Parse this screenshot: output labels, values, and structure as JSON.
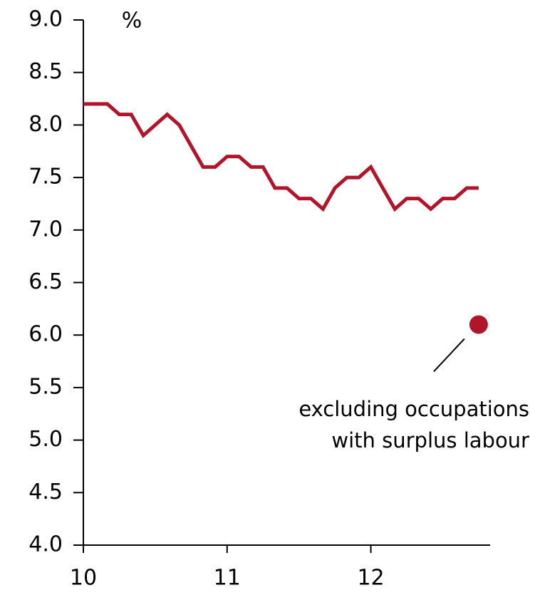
{
  "chart_data": {
    "type": "line",
    "y_label": "%",
    "x": [
      10,
      10.083,
      10.167,
      10.25,
      10.333,
      10.417,
      10.5,
      10.583,
      10.667,
      10.75,
      10.833,
      10.917,
      11,
      11.083,
      11.167,
      11.25,
      11.333,
      11.417,
      11.5,
      11.583,
      11.667,
      11.75,
      11.833,
      11.917,
      12,
      12.083,
      12.167,
      12.25,
      12.333,
      12.417,
      12.5,
      12.583,
      12.667,
      12.75
    ],
    "series": [
      {
        "color": "#b0152a",
        "values": [
          8.2,
          8.2,
          8.2,
          8.1,
          8.1,
          7.9,
          8.0,
          8.1,
          8.0,
          7.8,
          7.6,
          7.6,
          7.7,
          7.7,
          7.6,
          7.6,
          7.4,
          7.4,
          7.3,
          7.3,
          7.2,
          7.4,
          7.5,
          7.5,
          7.6,
          7.4,
          7.2,
          7.3,
          7.3,
          7.2,
          7.3,
          7.3,
          7.4,
          7.4
        ]
      }
    ],
    "annotation": {
      "lines": [
        "excluding occupations",
        "with surplus labour"
      ],
      "x": 12.75,
      "y": 6.1,
      "color": "#b0152a"
    },
    "xlim": [
      10,
      12.83
    ],
    "xticks": [
      10,
      11,
      12
    ],
    "ylim": [
      4.0,
      9.0
    ],
    "yticks": [
      {
        "value": 4,
        "label": "4.0"
      },
      {
        "value": 4.5,
        "label": "4.5"
      },
      {
        "value": 5,
        "label": "5.0"
      },
      {
        "value": 5.5,
        "label": "5.5"
      },
      {
        "value": 6,
        "label": "6.0"
      },
      {
        "value": 6.5,
        "label": "6.5"
      },
      {
        "value": 7,
        "label": "7.0"
      },
      {
        "value": 7.5,
        "label": "7.5"
      },
      {
        "value": 8,
        "label": "8.0"
      },
      {
        "value": 8.5,
        "label": "8.5"
      },
      {
        "value": 9,
        "label": "9.0"
      }
    ],
    "grid": false
  }
}
